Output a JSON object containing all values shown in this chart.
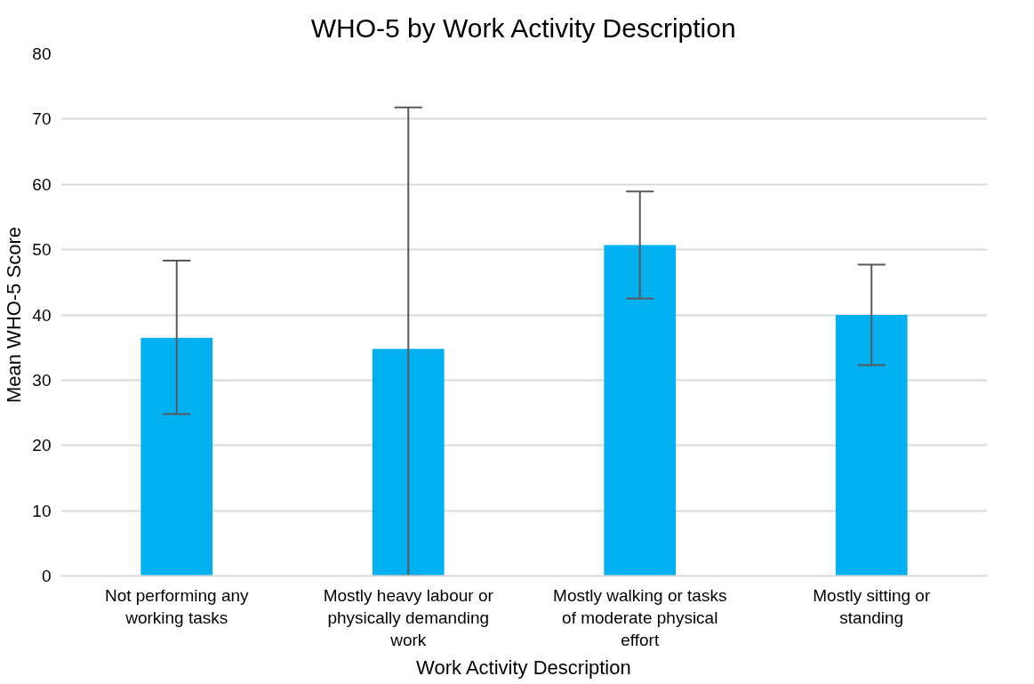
{
  "chart_data": {
    "type": "bar",
    "title": "WHO-5 by Work Activity Description",
    "xlabel": "Work Activity Description",
    "ylabel": "Mean WHO-5 Score",
    "categories": [
      "Not performing any working tasks",
      "Mostly heavy labour or physically demanding work",
      "Mostly walking or tasks of moderate physical effort",
      "Mostly sitting or standing"
    ],
    "values": [
      36.5,
      34.8,
      50.7,
      40.0
    ],
    "errors": [
      [
        24.8,
        48.3
      ],
      [
        0,
        71.8
      ],
      [
        42.5,
        58.9
      ],
      [
        32.3,
        47.7
      ]
    ],
    "color": "#00b0f0",
    "ylim": [
      0,
      80
    ],
    "yticks": [
      0,
      10,
      20,
      30,
      40,
      50,
      60,
      70,
      80
    ],
    "grid": "y"
  }
}
